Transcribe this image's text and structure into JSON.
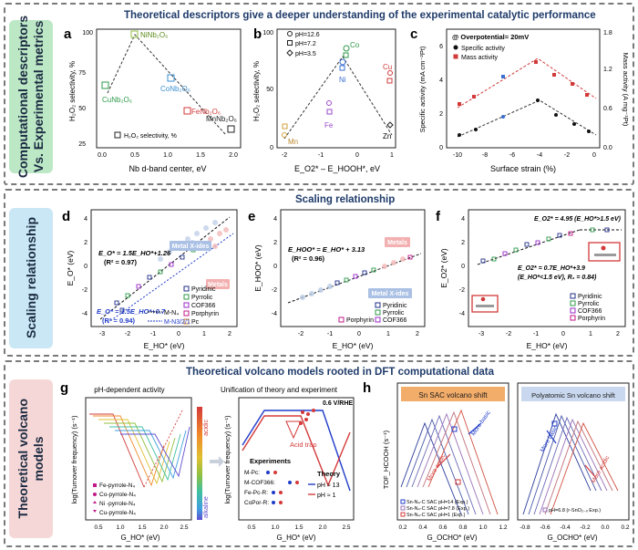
{
  "section1": {
    "side_label_line1": "Computational descriptors",
    "side_label_line2": "Vs. Experimental metrics",
    "side_color": "#bde8c6",
    "title": "Theoretical descriptors give a deeper understanding of the experimental catalytic performance",
    "panel_a": {
      "letter": "a",
      "xlabel": "Nb d-band center, eV",
      "ylabel": "H₂O₂ selectivity, %",
      "xticks": [
        "0.0",
        "0.5",
        "1.0",
        "1.5",
        "2.0"
      ],
      "yticks": [
        "25",
        "50",
        "75",
        "100"
      ],
      "legend": "H₂O₂ selectivity, %",
      "points": [
        {
          "label": "NiNb₂O₆",
          "x": 0.5,
          "y": 93,
          "color": "#8fbf3f"
        },
        {
          "label": "CuNb₂O₆",
          "x": 0.15,
          "y": 65,
          "color": "#2e9a4a"
        },
        {
          "label": "CoNb₂O₆",
          "x": 0.9,
          "y": 70,
          "color": "#3a8fd0"
        },
        {
          "label": "FeNb₂O₆",
          "x": 1.2,
          "y": 48,
          "color": "#d23a3a"
        },
        {
          "label": "MnNb₂O₆",
          "x": 1.95,
          "y": 37,
          "color": "#222222"
        }
      ]
    },
    "panel_b": {
      "letter": "b",
      "xlabel": "E_O2* – E_HOOH*, eV",
      "ylabel": "H₂O₂ selectivity, %",
      "xticks": [
        "-2",
        "-1",
        "0",
        "1"
      ],
      "yticks": [
        "0",
        "50",
        "100"
      ],
      "legend": [
        "pH=12.6",
        "pH=7.2",
        "pH=3.5"
      ],
      "labels": [
        "Co",
        "Ni",
        "Cu",
        "Fe",
        "Mn",
        "Zn"
      ]
    },
    "panel_c": {
      "letter": "c",
      "annotation": "@ Overpotential= 20mV",
      "legend": [
        "Specific activity",
        "Mass activity"
      ],
      "xlabel": "Surface strain (%)",
      "ylabel_left": "Specific activity (mA cm⁻²Pt)",
      "ylabel_right": "Mass activity (A mg⁻¹Pt)",
      "xticks": [
        "-10",
        "-8",
        "-6",
        "-4",
        "-2",
        "0"
      ],
      "yticks_left": [
        "0",
        "1",
        "2",
        "3",
        "4",
        "5",
        "6",
        "7"
      ],
      "yticks_right": [
        "0.0",
        "0.3",
        "0.6",
        "0.9",
        "1.2",
        "1.5",
        "1.8"
      ]
    }
  },
  "section2": {
    "side_label": "Scaling relationship",
    "side_color": "#c9e7f5",
    "title": "Scaling relationship",
    "panel_d": {
      "letter": "d",
      "ylabel": "E_O* (eV)",
      "xlabel": "E_HO* (eV)",
      "eq1": "E_O* = 1.5E_HO*+1.26",
      "r1": "(R² = 0.97)",
      "eq2": "E_O* = 1.5E_HO*+0.7",
      "r2": "(R² = 0.94)",
      "tag1": "Metal X-ides",
      "tag2": "Metals",
      "legend": [
        "Pyridinic",
        "Pyrrolic",
        "COF366",
        "Porphyrin",
        "Pc",
        "M-N₄",
        "M-N3/2/1"
      ],
      "xticks": [
        "-3",
        "-2",
        "-1",
        "0",
        "1",
        "2"
      ],
      "yticks": [
        "-4",
        "-2",
        "0",
        "2",
        "4"
      ]
    },
    "panel_e": {
      "letter": "e",
      "ylabel": "E_HOO* (eV)",
      "xlabel": "E_HO* (eV)",
      "eq": "E_HOO* = E_HO* + 3.13",
      "r": "(R² = 0.96)",
      "tag1": "Metals",
      "tag2": "Metal X-ides",
      "legend": [
        "Pyridinic",
        "Pyrrolic",
        "COF366",
        "Porphyrin"
      ],
      "xticks": [
        "-2",
        "-1",
        "0",
        "1",
        "2"
      ],
      "yticks": [
        "-4",
        "-2",
        "0",
        "2",
        "4"
      ]
    },
    "panel_f": {
      "letter": "f",
      "ylabel": "E_O2* (eV)",
      "xlabel": "E_HO* (eV)",
      "eq1": "E_O2* = 4.95 (E_HO*>1.5 eV)",
      "eq2": "E_O2* = 0.7E_HO*+3.9",
      "eq2b": "(E_HO*<1.5 eV),  R₂ = 0.84)",
      "legend": [
        "Pyridinic",
        "Pyrrolic",
        "COF366",
        "Porphyrin"
      ],
      "xticks": [
        "-3",
        "-2",
        "-1",
        "0",
        "1",
        "2"
      ],
      "yticks": [
        "-4",
        "-2",
        "0",
        "2",
        "4"
      ]
    }
  },
  "section3": {
    "side_label_line1": "Theoretical volcano",
    "side_label_line2": "models",
    "side_color": "#f6d7d7",
    "title": "Theoretical volcano models rooted in DFT computational data",
    "panel_g": {
      "letter": "g",
      "subtitle_left": "pH-dependent activity",
      "subtitle_right": "Unification of theory and experiment",
      "ylabel": "log(Turnover frequency) (s⁻¹)",
      "xlabel": "G_HO* (eV)",
      "colorbar_top": "acidic",
      "colorbar_bottom": "alkaline",
      "potential": "0.6 V/RHE",
      "acid_trap": "Acid trap",
      "left_legend": [
        "Fe-pyrrole-N₄",
        "Co-pyrrole-N₄",
        "Ni -pyrrole-N₄",
        "Cu-pyrrole-N₄"
      ],
      "experiments_title": "Experiments",
      "experiments": [
        "M-Pc:",
        "M-COF366:",
        "Fe-Pc-R:",
        "CoPor-R:"
      ],
      "theory_title": "Theory",
      "theory": [
        "pH ≈ 13",
        "pH ≈ 1"
      ],
      "xticks_left": [
        "0.5",
        "1.0",
        "1.5",
        "2.0",
        "2.5"
      ],
      "xticks_right": [
        "0.5",
        "1.0",
        "1.5",
        "2.0",
        "2.5"
      ]
    },
    "panel_h": {
      "letter": "h",
      "ylabel": "TOF_HCOOH (s⁻¹)",
      "left": {
        "title": "Sn SAC volcano shift",
        "more_basic": "More basic",
        "more_acidic": "More acidic",
        "legend": [
          "Sn-N₄-C SAC pH=14 (Exp.)",
          "Sn-N₄-C SAC pH=7.8 (Exp.)",
          "Sn-N₄-C SAC pH=1 (Exp.)"
        ],
        "xlabel": "G_OCHO* (eV)",
        "xticks": [
          "0.2",
          "0.4",
          "0.6",
          "0.8",
          "1.0",
          "1.2"
        ]
      },
      "right": {
        "title": "Polyatomic Sn volcano shift",
        "more_basic": "More basic",
        "more_acidic": "More acidic",
        "legend": "pH=6.8 (r-SnO₂₋ₓ Exp.)",
        "xlabel": "G_OCHO* (eV)",
        "xticks": [
          "-0.8",
          "-0.6",
          "-0.4",
          "-0.2",
          "0.0",
          "0.2"
        ]
      }
    }
  }
}
